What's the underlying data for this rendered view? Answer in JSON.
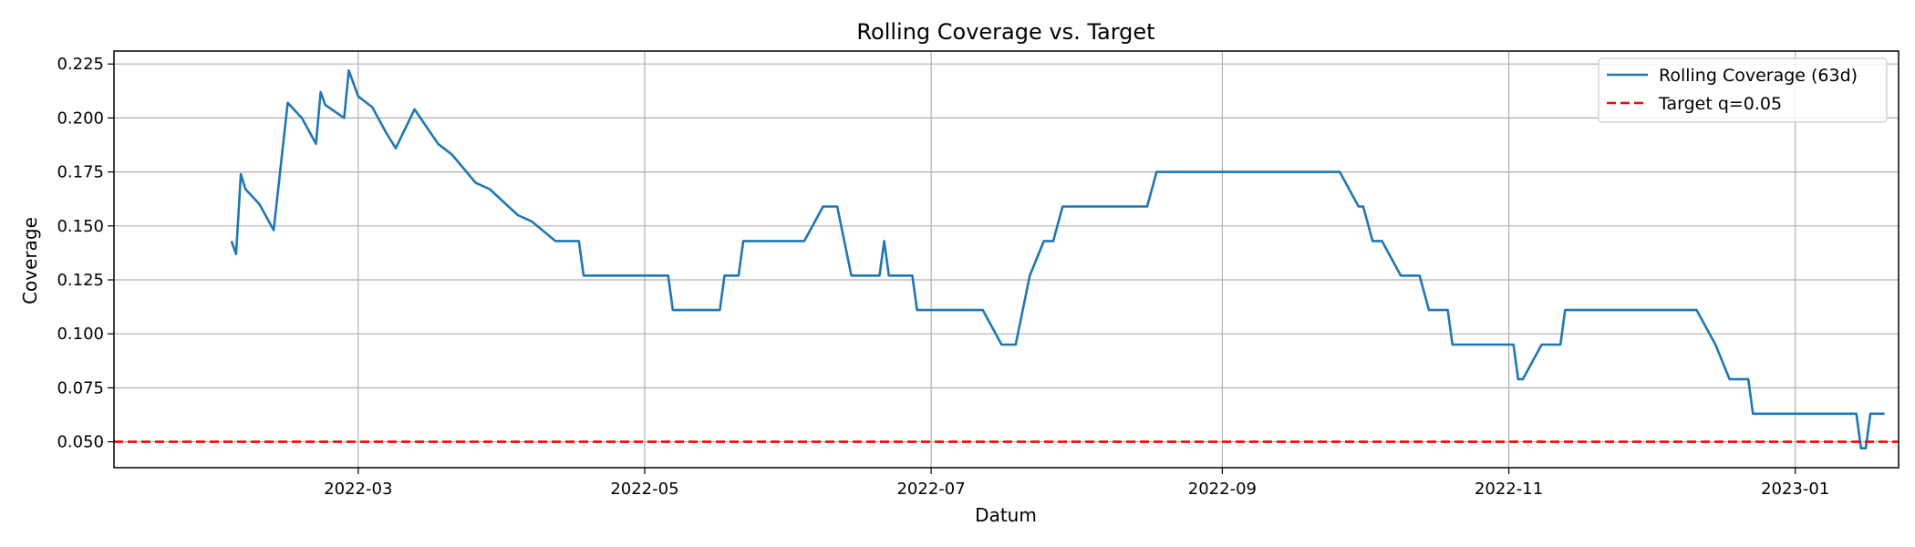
{
  "chart_data": {
    "type": "line",
    "title": "Rolling Coverage vs. Target",
    "xlabel": "Datum",
    "ylabel": "Coverage",
    "xlim": [
      "2022-01-08",
      "2023-01-23"
    ],
    "ylim": [
      0.038,
      0.231
    ],
    "grid": true,
    "legend_position": "top-right",
    "x_ticks": [
      "2022-03-01",
      "2022-05-01",
      "2022-07-01",
      "2022-09-01",
      "2022-11-01",
      "2023-01-01"
    ],
    "x_tick_labels": [
      "2022-03",
      "2022-05",
      "2022-07",
      "2022-09",
      "2022-11",
      "2023-01"
    ],
    "y_ticks": [
      0.05,
      0.075,
      0.1,
      0.125,
      0.15,
      0.175,
      0.2,
      0.225
    ],
    "y_tick_labels": [
      "0.050",
      "0.075",
      "0.100",
      "0.125",
      "0.150",
      "0.175",
      "0.200",
      "0.225"
    ],
    "series": [
      {
        "name": "Rolling Coverage (63d)",
        "color": "#1f77b4",
        "style": "solid",
        "points": [
          [
            "2022-02-02",
            0.143
          ],
          [
            "2022-02-03",
            0.137
          ],
          [
            "2022-02-04",
            0.174
          ],
          [
            "2022-02-05",
            0.167
          ],
          [
            "2022-02-08",
            0.16
          ],
          [
            "2022-02-11",
            0.148
          ],
          [
            "2022-02-14",
            0.207
          ],
          [
            "2022-02-17",
            0.2
          ],
          [
            "2022-02-20",
            0.188
          ],
          [
            "2022-02-21",
            0.212
          ],
          [
            "2022-02-22",
            0.206
          ],
          [
            "2022-02-26",
            0.2
          ],
          [
            "2022-02-27",
            0.222
          ],
          [
            "2022-03-01",
            0.21
          ],
          [
            "2022-03-04",
            0.205
          ],
          [
            "2022-03-07",
            0.193
          ],
          [
            "2022-03-09",
            0.186
          ],
          [
            "2022-03-13",
            0.204
          ],
          [
            "2022-03-18",
            0.188
          ],
          [
            "2022-03-21",
            0.183
          ],
          [
            "2022-03-26",
            0.17
          ],
          [
            "2022-03-29",
            0.167
          ],
          [
            "2022-04-04",
            0.155
          ],
          [
            "2022-04-07",
            0.152
          ],
          [
            "2022-04-12",
            0.143
          ],
          [
            "2022-04-17",
            0.143
          ],
          [
            "2022-04-18",
            0.127
          ],
          [
            "2022-05-06",
            0.127
          ],
          [
            "2022-05-07",
            0.111
          ],
          [
            "2022-05-17",
            0.111
          ],
          [
            "2022-05-18",
            0.127
          ],
          [
            "2022-05-21",
            0.127
          ],
          [
            "2022-05-22",
            0.143
          ],
          [
            "2022-06-04",
            0.143
          ],
          [
            "2022-06-08",
            0.159
          ],
          [
            "2022-06-11",
            0.159
          ],
          [
            "2022-06-14",
            0.127
          ],
          [
            "2022-06-20",
            0.127
          ],
          [
            "2022-06-21",
            0.143
          ],
          [
            "2022-06-22",
            0.127
          ],
          [
            "2022-06-27",
            0.127
          ],
          [
            "2022-06-28",
            0.111
          ],
          [
            "2022-07-12",
            0.111
          ],
          [
            "2022-07-16",
            0.095
          ],
          [
            "2022-07-19",
            0.095
          ],
          [
            "2022-07-22",
            0.127
          ],
          [
            "2022-07-25",
            0.143
          ],
          [
            "2022-07-27",
            0.143
          ],
          [
            "2022-07-29",
            0.159
          ],
          [
            "2022-08-16",
            0.159
          ],
          [
            "2022-08-18",
            0.175
          ],
          [
            "2022-09-26",
            0.175
          ],
          [
            "2022-09-30",
            0.159
          ],
          [
            "2022-10-01",
            0.159
          ],
          [
            "2022-10-03",
            0.143
          ],
          [
            "2022-10-05",
            0.143
          ],
          [
            "2022-10-09",
            0.127
          ],
          [
            "2022-10-13",
            0.127
          ],
          [
            "2022-10-15",
            0.111
          ],
          [
            "2022-10-19",
            0.111
          ],
          [
            "2022-10-20",
            0.095
          ],
          [
            "2022-11-02",
            0.095
          ],
          [
            "2022-11-03",
            0.079
          ],
          [
            "2022-11-04",
            0.079
          ],
          [
            "2022-11-08",
            0.095
          ],
          [
            "2022-11-12",
            0.095
          ],
          [
            "2022-11-13",
            0.111
          ],
          [
            "2022-12-11",
            0.111
          ],
          [
            "2022-12-15",
            0.095
          ],
          [
            "2022-12-18",
            0.079
          ],
          [
            "2022-12-22",
            0.079
          ],
          [
            "2022-12-23",
            0.063
          ],
          [
            "2023-01-14",
            0.063
          ],
          [
            "2023-01-15",
            0.047
          ],
          [
            "2023-01-16",
            0.047
          ],
          [
            "2023-01-17",
            0.063
          ],
          [
            "2023-01-20",
            0.063
          ]
        ]
      },
      {
        "name": "Target q=0.05",
        "color": "#ff0000",
        "style": "dashed",
        "constant": 0.05
      }
    ]
  }
}
